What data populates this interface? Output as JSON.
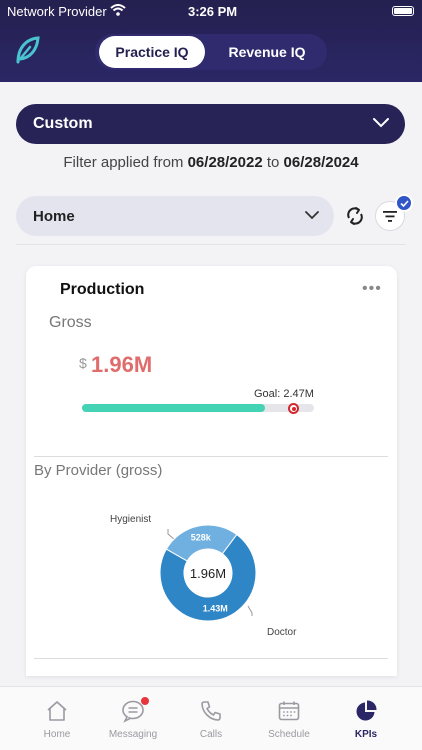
{
  "status_bar": {
    "carrier": "Network Provider",
    "time": "3:26 PM"
  },
  "header": {
    "logo_icon": "feather-leaf-icon",
    "tabs": [
      {
        "label": "Practice IQ",
        "active": true
      },
      {
        "label": "Revenue IQ",
        "active": false
      }
    ]
  },
  "filters": {
    "range_label": "Custom",
    "applied_prefix": "Filter applied from",
    "start_date": "06/28/2022",
    "connector": "to",
    "end_date": "06/28/2024",
    "location_label": "Home"
  },
  "production_card": {
    "title": "Production",
    "menu_label": "•••",
    "gross_label": "Gross",
    "currency": "$",
    "gross_value": "1.96M",
    "goal_text": "Goal: 2.47M",
    "progress_fraction": 0.79,
    "provider_title": "By Provider (gross)",
    "donut_center": "1.96M",
    "colors": {
      "value": "#e06c6c",
      "progress": "#45d3b5",
      "goal_marker": "#d0282e",
      "doctor": "#2f86c6",
      "hygienist": "#6fb0e0"
    }
  },
  "chart_data": {
    "type": "pie",
    "title": "By Provider (gross)",
    "center_label": "1.96M",
    "slices": [
      {
        "label": "Doctor",
        "value_label": "1.43M",
        "value": 1.43
      },
      {
        "label": "Hygienist",
        "value_label": "528k",
        "value": 0.528
      }
    ]
  },
  "tabbar": {
    "items": [
      {
        "label": "Home",
        "icon": "home-icon"
      },
      {
        "label": "Messaging",
        "icon": "chat-bubble-icon"
      },
      {
        "label": "Calls",
        "icon": "phone-icon"
      },
      {
        "label": "Schedule",
        "icon": "calendar-icon"
      },
      {
        "label": "KPIs",
        "icon": "pie-chart-icon",
        "active": true
      }
    ]
  }
}
